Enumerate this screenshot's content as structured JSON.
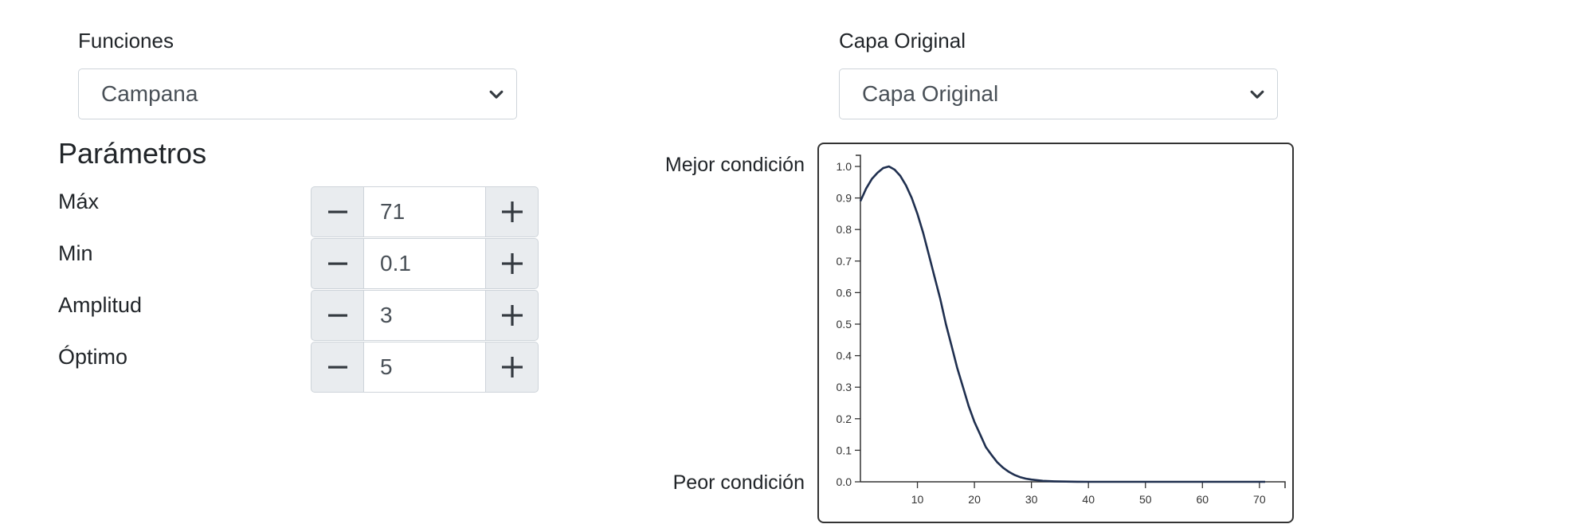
{
  "funciones": {
    "label": "Funciones",
    "selected": "Campana"
  },
  "capa": {
    "label": "Capa Original",
    "selected": "Capa Original"
  },
  "parametros": {
    "title": "Parámetros",
    "items": [
      {
        "label": "Máx",
        "value": "71"
      },
      {
        "label": "Min",
        "value": "0.1"
      },
      {
        "label": "Amplitud",
        "value": "3"
      },
      {
        "label": "Óptimo",
        "value": "5"
      }
    ]
  },
  "chart": {
    "best_label": "Mejor condición",
    "worst_label": "Peor condición"
  },
  "colors": {
    "curve": "#1f2f4f",
    "axis": "#333333"
  },
  "chart_data": {
    "type": "line",
    "title": "",
    "xlabel": "",
    "ylabel": "",
    "xlim": [
      0,
      71
    ],
    "ylim": [
      0,
      1.0
    ],
    "x_ticks": [
      "10",
      "20",
      "30",
      "40",
      "50",
      "60",
      "70"
    ],
    "y_ticks": [
      "0.0",
      "0.1",
      "0.2",
      "0.3",
      "0.4",
      "0.5",
      "0.6",
      "0.7",
      "0.8",
      "0.9",
      "1.0"
    ],
    "grid": false,
    "series": [
      {
        "x": [
          0,
          1,
          2,
          3,
          4,
          5,
          6,
          7,
          8,
          9,
          10,
          11,
          12,
          13,
          14,
          15,
          16,
          17,
          18,
          19,
          20,
          21,
          22,
          23,
          24,
          25,
          26,
          27,
          28,
          29,
          30,
          32,
          34,
          36,
          38,
          40,
          42,
          45,
          50,
          55,
          60,
          65,
          71
        ],
        "y": [
          0.89,
          0.93,
          0.96,
          0.98,
          0.995,
          1.0,
          0.99,
          0.97,
          0.94,
          0.9,
          0.85,
          0.79,
          0.72,
          0.65,
          0.58,
          0.5,
          0.43,
          0.36,
          0.3,
          0.24,
          0.19,
          0.15,
          0.11,
          0.085,
          0.062,
          0.045,
          0.032,
          0.022,
          0.015,
          0.01,
          0.007,
          0.003,
          0.0015,
          0.0007,
          0.0003,
          0.0001,
          0.0,
          0.0,
          0.0,
          0.0,
          0.0,
          0.0,
          0.0
        ]
      }
    ]
  }
}
